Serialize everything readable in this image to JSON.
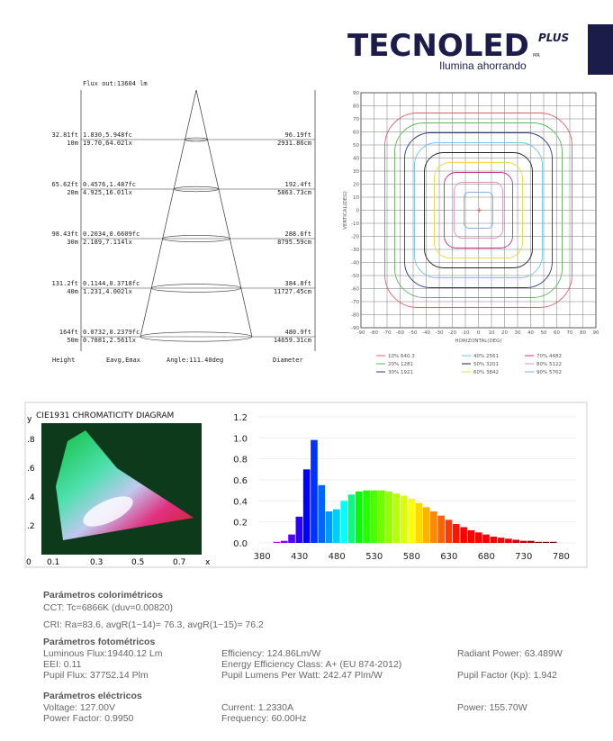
{
  "header": {
    "brand": "TECNOLED",
    "plus": "PLUS",
    "mr": "MR",
    "slogan": "Ilumina ahorrando"
  },
  "cone": {
    "flux": "Flux out:13604 lm",
    "rows": [
      {
        "height_ft": "32.81ft",
        "height_m": "10m",
        "e_fc": "1.830,5.948fc",
        "e_lx": "19.70,64.02lx",
        "d_ft": "96.19ft",
        "d_cm": "2931.86cm"
      },
      {
        "height_ft": "65.62ft",
        "height_m": "20m",
        "e_fc": "0.4576,1.487fc",
        "e_lx": "4.925,16.01lx",
        "d_ft": "192.4ft",
        "d_cm": "5863.73cm"
      },
      {
        "height_ft": "98.43ft",
        "height_m": "30m",
        "e_fc": "0.2034,0.6609fc",
        "e_lx": "2.189,7.114lx",
        "d_ft": "288.6ft",
        "d_cm": "8795.59cm"
      },
      {
        "height_ft": "131.2ft",
        "height_m": "40m",
        "e_fc": "0.1144,0.3718fc",
        "e_lx": "1.231,4.002lx",
        "d_ft": "384.8ft",
        "d_cm": "11727.45cm"
      },
      {
        "height_ft": "164ft",
        "height_m": "50m",
        "e_fc": "0.0732,0.2379fc",
        "e_lx": "0.7881,2.561lx",
        "d_ft": "480.9ft",
        "d_cm": "14659.31cm"
      }
    ],
    "footer": [
      "Height",
      "Eavg,Emax",
      "Angle:111.40deg",
      "Diameter"
    ]
  },
  "isolux": {
    "type": "contour",
    "xlabel": "HORIZONTAL(DEG)",
    "ylabel": "VERTICAL(DEG)",
    "xlim": [
      -90,
      90
    ],
    "ylim": [
      -90,
      90
    ],
    "xticks": [
      -90,
      -80,
      -70,
      -60,
      -50,
      -40,
      -30,
      -20,
      -10,
      0,
      10,
      20,
      30,
      40,
      50,
      60,
      70,
      80,
      90
    ],
    "yticks": [
      -90,
      -80,
      -70,
      -60,
      -50,
      -40,
      -30,
      -20,
      -10,
      0,
      10,
      20,
      30,
      40,
      50,
      60,
      70,
      80,
      90
    ],
    "grid": true,
    "legend": [
      {
        "label": "10% 640.3",
        "color": "#e0606a"
      },
      {
        "label": "20% 1281",
        "color": "#5cb85c"
      },
      {
        "label": "30% 1921",
        "color": "#2a3a8a"
      },
      {
        "label": "40% 2561",
        "color": "#6cc8e8"
      },
      {
        "label": "50% 3201",
        "color": "#222222"
      },
      {
        "label": "60% 3842",
        "color": "#e8d840"
      },
      {
        "label": "70% 4482",
        "color": "#c03090"
      },
      {
        "label": "80% 5122",
        "color": "#e090c0"
      },
      {
        "label": "90% 5762",
        "color": "#80b0f0"
      }
    ]
  },
  "cie": {
    "title": "CIE1931 CHROMATICITY DIAGRAM",
    "ylabel": "y",
    "xlabel": "x",
    "yticks": [
      ".8",
      ".6",
      ".4",
      ".2"
    ],
    "origin": "0",
    "xticks": [
      "0.1",
      "0.3",
      "0.5",
      "0.7"
    ]
  },
  "spectrum": {
    "type": "bar",
    "xlim": [
      375,
      800
    ],
    "ylim": [
      0,
      1.2
    ],
    "xticks": [
      380,
      430,
      480,
      530,
      580,
      630,
      680,
      730,
      780
    ],
    "yticks": [
      {
        "value": 0,
        "label": "0.0"
      },
      0.2,
      0.4,
      0.6,
      0.8,
      {
        "value": 1,
        "label": "1.0"
      },
      1.2
    ],
    "x": [
      380,
      390,
      400,
      410,
      420,
      430,
      440,
      450,
      460,
      470,
      480,
      490,
      500,
      510,
      520,
      530,
      540,
      550,
      560,
      570,
      580,
      590,
      600,
      610,
      620,
      630,
      640,
      650,
      660,
      670,
      680,
      690,
      700,
      710,
      720,
      730,
      740,
      750,
      760,
      770,
      780
    ],
    "values": [
      0,
      0,
      0.01,
      0.02,
      0.08,
      0.25,
      0.7,
      0.98,
      0.55,
      0.3,
      0.32,
      0.4,
      0.46,
      0.49,
      0.5,
      0.5,
      0.5,
      0.49,
      0.47,
      0.45,
      0.42,
      0.38,
      0.34,
      0.3,
      0.26,
      0.22,
      0.18,
      0.15,
      0.12,
      0.1,
      0.08,
      0.06,
      0.05,
      0.04,
      0.03,
      0.02,
      0.02,
      0.01,
      0.01,
      0.01,
      0
    ]
  },
  "params": {
    "color_title": "Parámetros colorimétricos",
    "cct": "CCT: Tc=6866K (duv=0.00820)",
    "cri": "CRI: Ra=83.6, avgR(1~14)= 76.3, avgR(1~15)= 76.2",
    "photo_title": "Parámetros fotométricos",
    "photo": [
      "Luminous Flux:19440.12 Lm",
      "EEI: 0.11",
      "Pupil Flux: 37752.14 Plm",
      "Efficiency: 124.86Lm/W",
      "Energy Efficiency Class: A+ (EU 874-2012)",
      "Pupil Lumens Per Watt: 242.47 Plm/W",
      "Radiant Power: 63.489W",
      "Pupil Factor (Kp): 1.942"
    ],
    "elec_title": "Parámetros eléctricos",
    "elec": [
      "Voltage: 127.00V",
      "Power Factor: 0.9950",
      "Current: 1.2330A",
      "Frequency: 60.00Hz",
      "Power: 155.70W"
    ]
  }
}
